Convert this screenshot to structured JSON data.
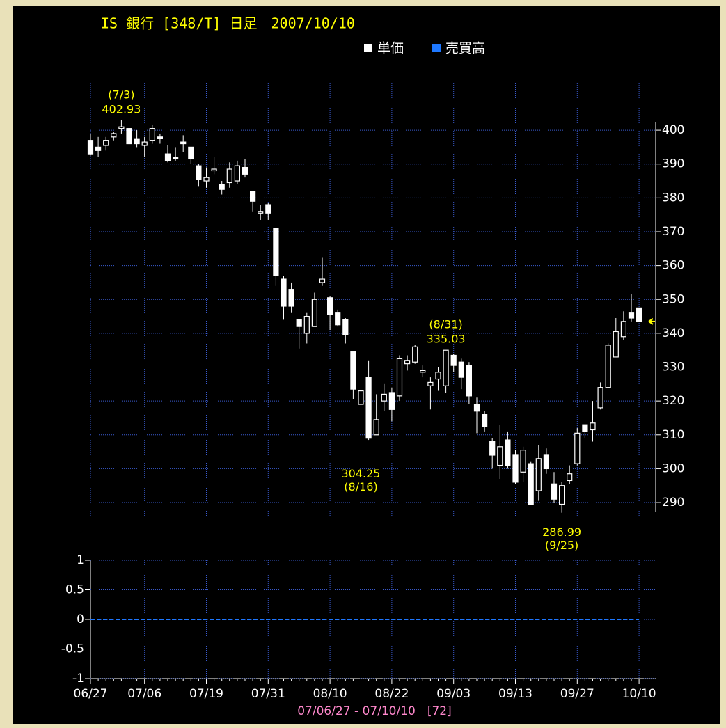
{
  "chart_data": {
    "type": "candlestick",
    "title": "IS 銀行 [348/T] 日足　2007/10/10",
    "period": "07/06/27 - 07/10/10　[72]",
    "categories": [
      "06/27",
      null,
      null,
      null,
      null,
      null,
      null,
      "07/06",
      null,
      null,
      null,
      null,
      null,
      null,
      null,
      "07/19",
      null,
      null,
      null,
      null,
      null,
      null,
      null,
      "07/31",
      null,
      null,
      null,
      null,
      null,
      null,
      null,
      "08/10",
      null,
      null,
      null,
      null,
      null,
      null,
      null,
      "08/22",
      null,
      null,
      null,
      null,
      null,
      null,
      null,
      "09/03",
      null,
      null,
      null,
      null,
      null,
      null,
      null,
      "09/13",
      null,
      null,
      null,
      null,
      null,
      null,
      null,
      "09/27",
      null,
      null,
      null,
      null,
      null,
      null,
      null,
      "10/10"
    ],
    "series": [
      {
        "name": "単価",
        "color": "#ffffff",
        "open": [
          397,
          395,
          395.5,
          398,
          400.5,
          400.5,
          397.5,
          395.5,
          397,
          398,
          393,
          392,
          396.5,
          395,
          389.5,
          385,
          388,
          384,
          384.5,
          385,
          389,
          382,
          375.5,
          378,
          371,
          356,
          353,
          344,
          340,
          342,
          355,
          350.5,
          346,
          344,
          334.5,
          319,
          327,
          310,
          320,
          322.5,
          321.5,
          331,
          331.5,
          328.5,
          324.5,
          326.5,
          324.5,
          333.5,
          331.5,
          330.5,
          319,
          316,
          308,
          301,
          308.5,
          304,
          299,
          301.5,
          293.5,
          304,
          295.5,
          289.5,
          296.5,
          301.5,
          313,
          311.5,
          318,
          324,
          333,
          339,
          346,
          347.5
        ],
        "high": [
          399,
          398,
          398,
          399.5,
          402.93,
          401,
          400,
          398,
          401.5,
          399,
          395.5,
          395,
          398.5,
          395,
          390,
          389,
          392,
          385,
          390.5,
          391,
          391.5,
          382,
          378,
          378.5,
          371,
          357,
          355,
          344,
          346,
          352,
          362.5,
          351,
          347,
          344.5,
          334.5,
          325,
          332,
          322,
          325,
          324,
          333.5,
          333.5,
          336.5,
          330.5,
          327,
          330,
          335.03,
          334,
          332.5,
          331.5,
          321,
          317,
          309,
          313,
          311,
          305.5,
          306.5,
          302,
          307,
          306,
          299,
          296,
          301,
          312,
          313,
          320,
          325.5,
          337,
          344.5,
          346.5,
          351.5,
          347.5
        ],
        "low": [
          392.5,
          392,
          394,
          397,
          399,
          395.5,
          395,
          392,
          396,
          396,
          390.5,
          391,
          393.5,
          390,
          383.5,
          383,
          387,
          381,
          383,
          384,
          386,
          376,
          373.5,
          373.5,
          354,
          344,
          346,
          335.5,
          337,
          342,
          354,
          341,
          342,
          337,
          320.5,
          304.25,
          308.5,
          310,
          317,
          314,
          320,
          329,
          331,
          327,
          317.5,
          323,
          322.5,
          328.5,
          323.5,
          319,
          310.5,
          311,
          300,
          297,
          300,
          295.5,
          296,
          289.5,
          290.5,
          298.5,
          290,
          286.99,
          295.5,
          301,
          309,
          308,
          317.5,
          324,
          333,
          338,
          343.5,
          343.5
        ],
        "close": [
          393,
          394,
          397,
          399,
          401,
          396,
          396,
          396.5,
          400.5,
          397.5,
          391,
          391.5,
          396,
          391.5,
          385.5,
          386,
          388.5,
          382.5,
          388.5,
          389.5,
          387,
          379,
          376,
          375.5,
          357,
          348,
          348,
          342,
          345,
          350,
          356,
          345.5,
          342.5,
          339.5,
          323.5,
          323,
          309,
          314.5,
          322,
          317.5,
          332.5,
          332,
          336,
          329,
          325.5,
          328.5,
          335,
          330.5,
          327,
          321.5,
          317,
          312.5,
          304,
          306.5,
          301,
          296,
          305.5,
          289.5,
          303,
          300,
          291,
          295,
          298.5,
          310.5,
          311,
          313.5,
          324,
          336.5,
          340.5,
          343.5,
          344.5,
          343.5
        ]
      },
      {
        "name": "売買高",
        "color": "#1e78ff",
        "values": [
          0,
          0,
          0,
          0,
          0,
          0,
          0,
          0,
          0,
          0,
          0,
          0,
          0,
          0,
          0,
          0,
          0,
          0,
          0,
          0,
          0,
          0,
          0,
          0,
          0,
          0,
          0,
          0,
          0,
          0,
          0,
          0,
          0,
          0,
          0,
          0,
          0,
          0,
          0,
          0,
          0,
          0,
          0,
          0,
          0,
          0,
          0,
          0,
          0,
          0,
          0,
          0,
          0,
          0,
          0,
          0,
          0,
          0,
          0,
          0,
          0,
          0,
          0,
          0,
          0,
          0,
          0,
          0,
          0,
          0,
          0,
          0
        ]
      }
    ],
    "ylim": [
      286,
      414
    ],
    "yticks": [
      290,
      300,
      310,
      320,
      330,
      340,
      350,
      360,
      370,
      380,
      390,
      400
    ],
    "y2lim": [
      -1,
      1
    ],
    "y2ticks": [
      -1,
      -0.5,
      0,
      0.5,
      1
    ],
    "annotations": [
      {
        "label": "(7/3)",
        "value": 402.93
      },
      {
        "label": "(8/16)",
        "value": 304.25
      },
      {
        "label": "(8/31)",
        "value": 335.03
      },
      {
        "label": "(9/25)",
        "value": 286.99
      }
    ],
    "grid": true,
    "title_color": "#ffff00",
    "annotation_color": "#ffff00",
    "period_color": "#ff88cc"
  }
}
